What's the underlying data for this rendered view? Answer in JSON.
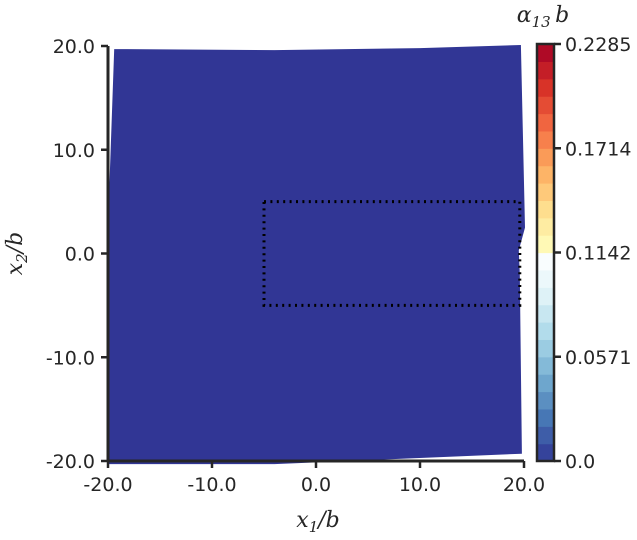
{
  "chart_data": {
    "type": "heatmap",
    "title": "",
    "xlabel": "x_1/b",
    "ylabel": "x_2/b",
    "xlim": [
      -20.0,
      20.0
    ],
    "ylim": [
      -20.0,
      20.0
    ],
    "x_ticks": [
      "-20.0",
      "-10.0",
      "0.0",
      "10.0",
      "20.0"
    ],
    "y_ticks": [
      "-20.0",
      "-10.0",
      "0.0",
      "10.0",
      "20.0"
    ],
    "field_value": 0.0,
    "deformed_boundary": [
      [
        -19.4,
        19.7
      ],
      [
        -4.0,
        19.6
      ],
      [
        10.0,
        19.8
      ],
      [
        19.7,
        20.1
      ],
      [
        20.1,
        2.5
      ],
      [
        19.5,
        0.3
      ],
      [
        19.6,
        -2.0
      ],
      [
        19.8,
        -19.3
      ],
      [
        -4.0,
        -20.3
      ],
      [
        -20.0,
        -20.3
      ],
      [
        -20.1,
        0.0
      ],
      [
        -19.4,
        19.7
      ]
    ],
    "inclusion_outline": [
      [
        -5.0,
        5.0
      ],
      [
        19.6,
        5.0
      ],
      [
        19.6,
        -5.0
      ],
      [
        -5.0,
        -5.0
      ],
      [
        -5.0,
        5.0
      ]
    ],
    "colorbar": {
      "title": "α₁₃ b",
      "min": 0.0,
      "max": 0.2285,
      "ticks": [
        "0.0",
        "0.0571",
        "0.1142",
        "0.1714",
        "0.2285"
      ],
      "colormap": "RdYlBu_r",
      "levels": 24
    },
    "colors": {
      "fill": "#313695",
      "outline": "#000000",
      "axis": "#262626"
    }
  }
}
